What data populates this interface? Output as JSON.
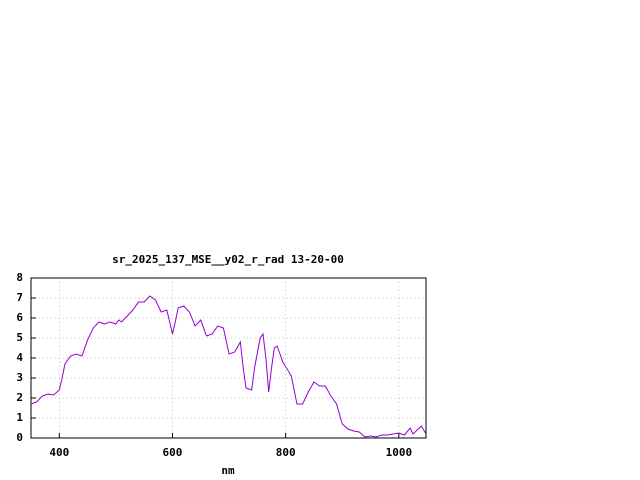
{
  "chart_data": {
    "type": "line",
    "title": "sr_2025_137_MSE__y02_r_rad 13-20-00",
    "x_label": "nm",
    "x": [
      350,
      360,
      370,
      380,
      390,
      400,
      405,
      410,
      420,
      430,
      440,
      450,
      460,
      470,
      480,
      490,
      500,
      505,
      510,
      520,
      530,
      540,
      550,
      560,
      570,
      580,
      590,
      600,
      605,
      610,
      620,
      630,
      640,
      650,
      660,
      670,
      680,
      690,
      700,
      710,
      720,
      725,
      730,
      740,
      745,
      755,
      760,
      765,
      770,
      775,
      780,
      785,
      795,
      810,
      820,
      830,
      840,
      850,
      860,
      870,
      880,
      890,
      900,
      910,
      920,
      930,
      940,
      950,
      960,
      970,
      980,
      990,
      1000,
      1010,
      1020,
      1025,
      1040,
      1048
    ],
    "series": [
      {
        "color": "#9400d3",
        "values": [
          1.7,
          1.8,
          2.1,
          2.2,
          2.15,
          2.4,
          3.0,
          3.7,
          4.1,
          4.2,
          4.1,
          4.9,
          5.5,
          5.8,
          5.7,
          5.8,
          5.7,
          5.9,
          5.8,
          6.1,
          6.4,
          6.8,
          6.8,
          7.1,
          6.9,
          6.3,
          6.4,
          5.2,
          5.8,
          6.5,
          6.6,
          6.3,
          5.6,
          5.9,
          5.1,
          5.2,
          5.6,
          5.5,
          4.2,
          4.3,
          4.8,
          3.5,
          2.5,
          2.4,
          3.5,
          5.0,
          5.2,
          4.0,
          2.3,
          3.5,
          4.5,
          4.6,
          3.8,
          3.1,
          1.7,
          1.7,
          2.3,
          2.8,
          2.6,
          2.6,
          2.1,
          1.7,
          0.7,
          0.45,
          0.35,
          0.3,
          0.05,
          0.1,
          0.05,
          0.15,
          0.15,
          0.2,
          0.25,
          0.15,
          0.5,
          0.2,
          0.6,
          0.2
        ]
      }
    ],
    "xlim": [
      350,
      1048
    ],
    "ylim": [
      0,
      8
    ],
    "xticks": [
      400,
      600,
      800,
      1000
    ],
    "yticks": [
      0,
      1,
      2,
      3,
      4,
      5,
      6,
      7,
      8
    ],
    "grid": true
  }
}
